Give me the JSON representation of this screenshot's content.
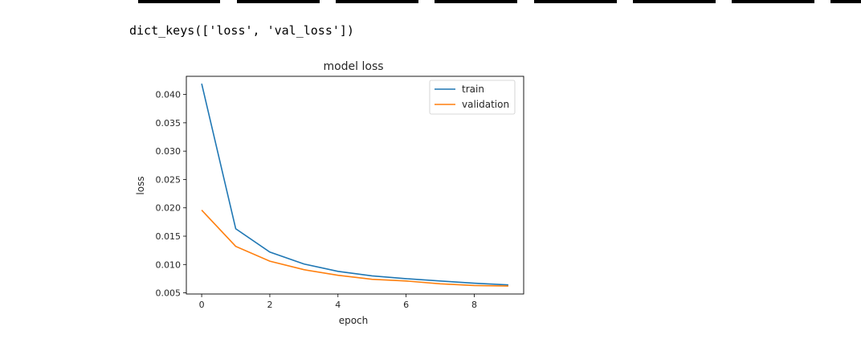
{
  "output": {
    "text": "dict_keys(['loss', 'val_loss'])"
  },
  "chart_data": {
    "type": "line",
    "title": "model loss",
    "xlabel": "epoch",
    "ylabel": "loss",
    "x": [
      0,
      1,
      2,
      3,
      4,
      5,
      6,
      7,
      8,
      9
    ],
    "xlim": [
      -0.45,
      9.45
    ],
    "ylim": [
      0.0048,
      0.0432
    ],
    "xticks": [
      0,
      2,
      4,
      6,
      8
    ],
    "yticks": [
      0.005,
      0.01,
      0.015,
      0.02,
      0.025,
      0.03,
      0.035,
      0.04
    ],
    "ytick_labels": [
      "0.005",
      "0.010",
      "0.015",
      "0.020",
      "0.025",
      "0.030",
      "0.035",
      "0.040"
    ],
    "grid": false,
    "legend_position": "top-right",
    "series": [
      {
        "name": "train",
        "color": "#1f77b4",
        "values": [
          0.0419,
          0.0163,
          0.0122,
          0.0101,
          0.0088,
          0.008,
          0.0075,
          0.0071,
          0.0067,
          0.0064
        ]
      },
      {
        "name": "validation",
        "color": "#ff7f0e",
        "values": [
          0.0196,
          0.0132,
          0.0106,
          0.0091,
          0.0081,
          0.0074,
          0.0071,
          0.0066,
          0.0063,
          0.0062
        ]
      }
    ]
  }
}
